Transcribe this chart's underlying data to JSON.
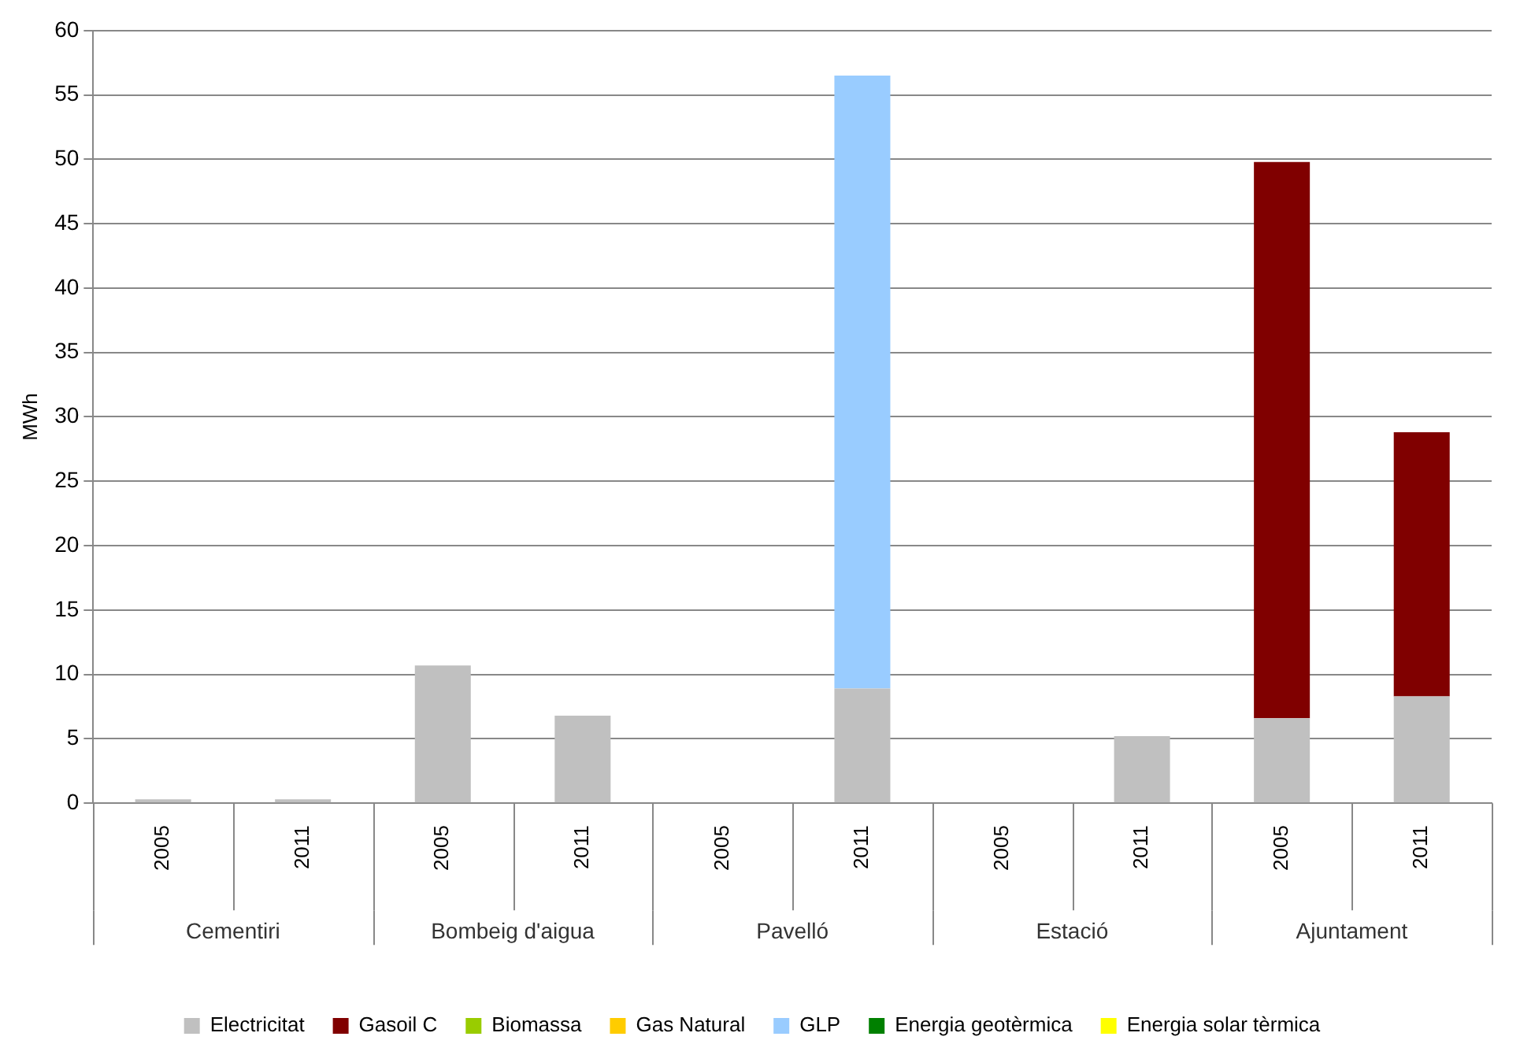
{
  "chart_data": {
    "type": "bar",
    "stacked": true,
    "ylabel": "MWh",
    "categories": [
      "2005",
      "2011",
      "2005",
      "2011",
      "2005",
      "2011",
      "2005",
      "2011",
      "2005",
      "2011"
    ],
    "annotations": [
      "Cementiri",
      "Bombeig d'aigua",
      "Pavelló",
      "Estació",
      "Ajuntament"
    ],
    "series": [
      {
        "name": "Electricitat",
        "color": "#c0c0c0",
        "values": [
          0.3,
          0.3,
          10.7,
          6.8,
          0,
          8.9,
          0,
          5.2,
          6.6,
          8.3
        ]
      },
      {
        "name": "Gasoil C",
        "color": "#800000",
        "values": [
          0,
          0,
          0,
          0,
          0,
          0,
          0,
          0,
          43.2,
          20.5
        ]
      },
      {
        "name": "Biomassa",
        "color": "#99cc00",
        "values": [
          0,
          0,
          0,
          0,
          0,
          0,
          0,
          0,
          0,
          0
        ]
      },
      {
        "name": "Gas Natural",
        "color": "#ffcc00",
        "values": [
          0,
          0,
          0,
          0,
          0,
          0,
          0,
          0,
          0,
          0
        ]
      },
      {
        "name": "GLP",
        "color": "#99ccff",
        "values": [
          0,
          0,
          0,
          0,
          0,
          47.6,
          0,
          0,
          0,
          0
        ]
      },
      {
        "name": "Energia geotèrmica",
        "color": "#008000",
        "values": [
          0,
          0,
          0,
          0,
          0,
          0,
          0,
          0,
          0,
          0
        ]
      },
      {
        "name": "Energia solar tèrmica",
        "color": "#ffff00",
        "values": [
          0,
          0,
          0,
          0,
          0,
          0,
          0,
          0,
          0,
          0
        ]
      }
    ],
    "ylim": [
      0,
      60
    ],
    "yticks": [
      0,
      5,
      10,
      15,
      20,
      25,
      30,
      35,
      40,
      45,
      50,
      55,
      60
    ],
    "grid": "y",
    "legend": "bottom"
  }
}
